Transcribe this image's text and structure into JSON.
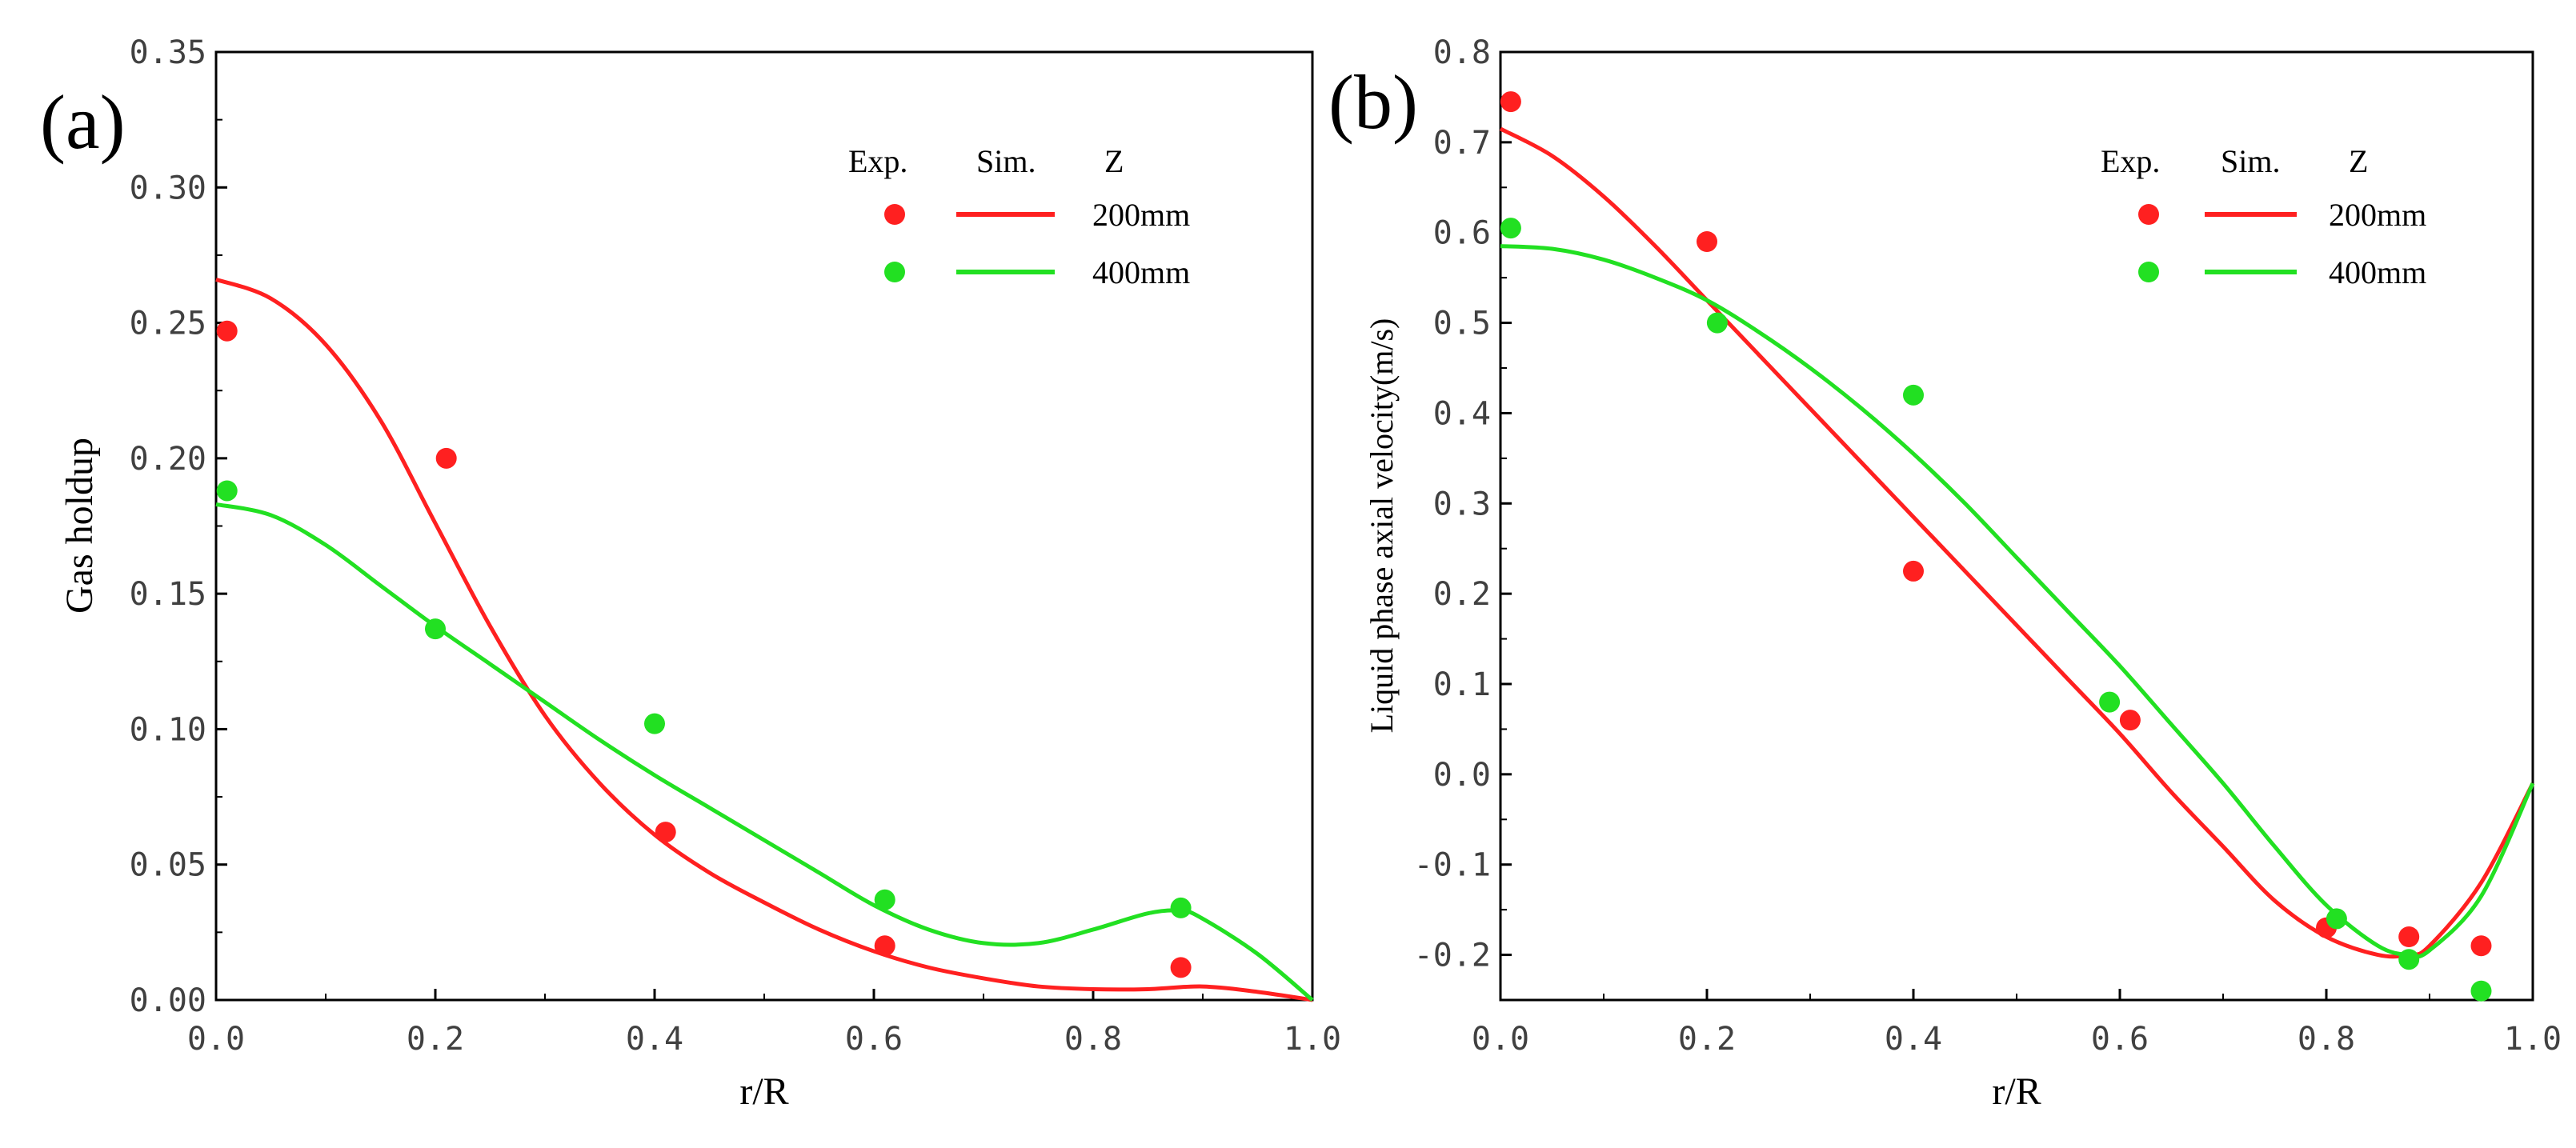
{
  "chart_data": [
    {
      "type": "scatter+line",
      "panel_label": "(a)",
      "xlabel": "r/R",
      "ylabel": "Gas holdup",
      "xlim": [
        0.0,
        1.0
      ],
      "ylim": [
        0.0,
        0.35
      ],
      "xticks": [
        "0.0",
        "0.2",
        "0.4",
        "0.6",
        "0.8",
        "1.0"
      ],
      "yticks": [
        "0.00",
        "0.05",
        "0.10",
        "0.15",
        "0.20",
        "0.25",
        "0.30",
        "0.35"
      ],
      "legend": {
        "headers": [
          "Exp.",
          "Sim.",
          "Z"
        ],
        "entries": [
          "200mm",
          "400mm"
        ],
        "position": "top-right"
      },
      "series": [
        {
          "name": "200mm",
          "color": "#ff2020",
          "exp": {
            "x": [
              0.01,
              0.21,
              0.41,
              0.61,
              0.88
            ],
            "y": [
              0.247,
              0.2,
              0.062,
              0.02,
              0.012
            ]
          },
          "sim": {
            "x": [
              0.0,
              0.05,
              0.1,
              0.15,
              0.2,
              0.25,
              0.3,
              0.35,
              0.4,
              0.45,
              0.5,
              0.55,
              0.6,
              0.65,
              0.7,
              0.75,
              0.8,
              0.85,
              0.9,
              0.95,
              1.0
            ],
            "y": [
              0.266,
              0.259,
              0.242,
              0.214,
              0.176,
              0.138,
              0.105,
              0.08,
              0.061,
              0.047,
              0.036,
              0.026,
              0.018,
              0.012,
              0.008,
              0.005,
              0.004,
              0.004,
              0.005,
              0.003,
              0.0
            ]
          }
        },
        {
          "name": "400mm",
          "color": "#22e022",
          "exp": {
            "x": [
              0.01,
              0.2,
              0.4,
              0.61,
              0.88
            ],
            "y": [
              0.188,
              0.137,
              0.102,
              0.037,
              0.034
            ]
          },
          "sim": {
            "x": [
              0.0,
              0.05,
              0.1,
              0.15,
              0.2,
              0.25,
              0.3,
              0.35,
              0.4,
              0.45,
              0.5,
              0.55,
              0.6,
              0.65,
              0.7,
              0.75,
              0.8,
              0.85,
              0.88,
              0.9,
              0.95,
              1.0
            ],
            "y": [
              0.183,
              0.179,
              0.168,
              0.153,
              0.138,
              0.124,
              0.11,
              0.096,
              0.083,
              0.071,
              0.059,
              0.047,
              0.035,
              0.026,
              0.021,
              0.021,
              0.026,
              0.032,
              0.033,
              0.03,
              0.017,
              0.0
            ]
          }
        }
      ]
    },
    {
      "type": "scatter+line",
      "panel_label": "(b)",
      "xlabel": "r/R",
      "ylabel": "Liquid phase axial velocity(m/s)",
      "xlim": [
        0.0,
        1.0
      ],
      "ylim": [
        -0.25,
        0.8
      ],
      "xticks": [
        "0.0",
        "0.2",
        "0.4",
        "0.6",
        "0.8",
        "1.0"
      ],
      "yticks": [
        "-0.2",
        "-0.1",
        "0.0",
        "0.1",
        "0.2",
        "0.3",
        "0.4",
        "0.5",
        "0.6",
        "0.7",
        "0.8"
      ],
      "legend": {
        "headers": [
          "Exp.",
          "Sim.",
          "Z"
        ],
        "entries": [
          "200mm",
          "400mm"
        ],
        "position": "top-right"
      },
      "series": [
        {
          "name": "200mm",
          "color": "#ff2020",
          "exp": {
            "x": [
              0.01,
              0.2,
              0.4,
              0.61,
              0.8,
              0.88,
              0.95
            ],
            "y": [
              0.745,
              0.59,
              0.225,
              0.06,
              -0.17,
              -0.18,
              -0.19
            ]
          },
          "sim": {
            "x": [
              0.0,
              0.05,
              0.1,
              0.15,
              0.2,
              0.25,
              0.3,
              0.35,
              0.4,
              0.45,
              0.5,
              0.55,
              0.6,
              0.65,
              0.7,
              0.75,
              0.8,
              0.85,
              0.88,
              0.9,
              0.95,
              1.0
            ],
            "y": [
              0.715,
              0.685,
              0.64,
              0.585,
              0.525,
              0.465,
              0.405,
              0.345,
              0.285,
              0.225,
              0.165,
              0.105,
              0.045,
              -0.02,
              -0.08,
              -0.14,
              -0.18,
              -0.2,
              -0.2,
              -0.19,
              -0.12,
              -0.01
            ]
          }
        },
        {
          "name": "400mm",
          "color": "#22e022",
          "exp": {
            "x": [
              0.01,
              0.21,
              0.4,
              0.59,
              0.81,
              0.88,
              0.95
            ],
            "y": [
              0.605,
              0.5,
              0.42,
              0.08,
              -0.16,
              -0.205,
              -0.24
            ]
          },
          "sim": {
            "x": [
              0.0,
              0.05,
              0.1,
              0.15,
              0.2,
              0.25,
              0.3,
              0.35,
              0.4,
              0.45,
              0.5,
              0.55,
              0.6,
              0.65,
              0.7,
              0.75,
              0.8,
              0.85,
              0.88,
              0.9,
              0.95,
              1.0
            ],
            "y": [
              0.585,
              0.582,
              0.57,
              0.55,
              0.525,
              0.49,
              0.45,
              0.405,
              0.355,
              0.3,
              0.24,
              0.18,
              0.12,
              0.055,
              -0.01,
              -0.08,
              -0.145,
              -0.19,
              -0.2,
              -0.195,
              -0.135,
              -0.01
            ]
          }
        }
      ]
    }
  ]
}
